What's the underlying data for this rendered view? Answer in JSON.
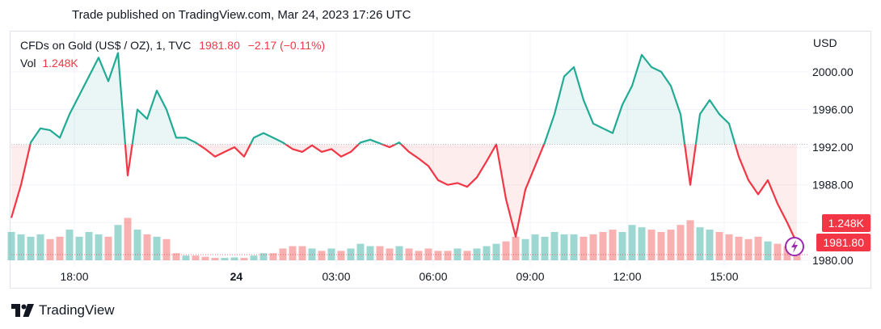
{
  "header": {
    "published": "Trade published on TradingView.com, Mar 24, 2023 17:26 UTC"
  },
  "legend": {
    "symbol": "CFDs on Gold (US$ / OZ), 1, TVC",
    "last": "1981.80",
    "change": "−2.17 (−0.11%)",
    "vol_label": "Vol",
    "vol_value": "1.248K"
  },
  "axis": {
    "currency": "USD"
  },
  "badges": {
    "volume": "1.248K",
    "price": "1981.80"
  },
  "footer": {
    "brand": "TradingView"
  },
  "colors": {
    "up": "#26a69a",
    "down": "#ef5350",
    "line_up": "#22ab94",
    "line_down": "#f23645"
  },
  "chart_data": {
    "type": "line",
    "baseline": 1992.3,
    "ylim": [
      1980,
      2002.3
    ],
    "yticks": [
      1980,
      1984,
      1988,
      1992,
      1996,
      2000
    ],
    "ytick_labels": [
      "1980.00",
      "1984.00",
      "1988.00",
      "1992.00",
      "1996.00",
      "2000.00"
    ],
    "x_labels": [
      {
        "label": "18:00",
        "idx": 6.5
      },
      {
        "label": "24",
        "idx": 23.2
      },
      {
        "label": "03:00",
        "idx": 33.5
      },
      {
        "label": "06:00",
        "idx": 43.5
      },
      {
        "label": "09:00",
        "idx": 53.5
      },
      {
        "label": "12:00",
        "idx": 63.5
      },
      {
        "label": "15:00",
        "idx": 73.5
      }
    ],
    "values": [
      1984.5,
      1988.0,
      1992.5,
      1994.0,
      1993.8,
      1993.0,
      1995.5,
      1997.5,
      1999.5,
      2001.5,
      1999.0,
      2002.0,
      1989.0,
      1996.0,
      1995.0,
      1998.0,
      1996.0,
      1993.0,
      1993.0,
      1992.5,
      1991.8,
      1991.0,
      1991.5,
      1992.0,
      1991.0,
      1993.0,
      1993.5,
      1993.0,
      1992.5,
      1991.8,
      1991.5,
      1992.2,
      1991.5,
      1991.8,
      1991.0,
      1991.5,
      1992.5,
      1992.8,
      1992.4,
      1992.0,
      1992.5,
      1991.5,
      1990.8,
      1990.0,
      1988.5,
      1988.0,
      1988.2,
      1987.8,
      1988.8,
      1990.5,
      1992.3,
      1986.5,
      1982.5,
      1987.5,
      1990.0,
      1992.5,
      1995.5,
      1999.5,
      2000.5,
      1997.0,
      1994.5,
      1994.0,
      1993.5,
      1996.5,
      1998.5,
      2001.8,
      2000.5,
      2000.0,
      1998.5,
      1995.5,
      1988.0,
      1995.5,
      1997.0,
      1995.5,
      1994.5,
      1991.0,
      1988.5,
      1987.0,
      1988.5,
      1986.0,
      1984.0,
      1981.8
    ],
    "volume_max": 2.4,
    "volume": [
      1.2,
      1.1,
      1.0,
      1.1,
      0.9,
      1.0,
      1.3,
      1.0,
      1.2,
      1.1,
      1.0,
      1.5,
      1.8,
      1.3,
      1.1,
      1.0,
      0.9,
      0.3,
      0.2,
      0.2,
      0.15,
      0.1,
      0.1,
      0.12,
      0.1,
      0.2,
      0.3,
      0.3,
      0.5,
      0.6,
      0.6,
      0.5,
      0.4,
      0.5,
      0.4,
      0.5,
      0.7,
      0.6,
      0.6,
      0.5,
      0.6,
      0.5,
      0.4,
      0.5,
      0.4,
      0.4,
      0.5,
      0.4,
      0.5,
      0.6,
      0.7,
      0.8,
      1.0,
      0.9,
      1.1,
      1.0,
      1.2,
      1.1,
      1.1,
      1.0,
      1.1,
      1.2,
      1.3,
      1.2,
      1.5,
      1.4,
      1.3,
      1.2,
      1.3,
      1.5,
      1.7,
      1.4,
      1.3,
      1.2,
      1.1,
      1.0,
      0.9,
      1.0,
      0.8,
      0.7,
      0.6,
      0.5
    ]
  }
}
